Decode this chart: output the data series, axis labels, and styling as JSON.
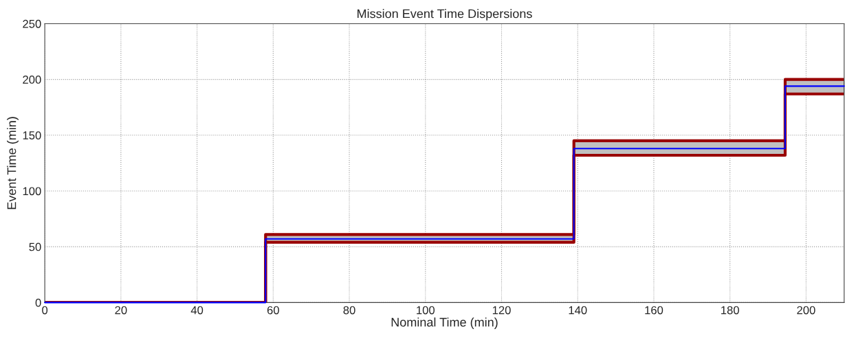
{
  "chart_data": {
    "type": "step",
    "title": "Mission Event Time Dispersions",
    "xlabel": "Nominal Time (min)",
    "ylabel": "Event Time (min)",
    "x": [
      0,
      58,
      139,
      194.5,
      210
    ],
    "series": [
      {
        "color": "#0000ff",
        "values": [
          0,
          57,
          138,
          194,
          194
        ],
        "lower": [
          0,
          54,
          132,
          187,
          187
        ],
        "upper": [
          0,
          61,
          145,
          200,
          200
        ]
      }
    ],
    "xlim": [
      0,
      210
    ],
    "ylim": [
      0,
      250
    ],
    "xticks": [
      0,
      20,
      40,
      60,
      80,
      100,
      120,
      140,
      160,
      180,
      200
    ],
    "yticks": [
      0,
      50,
      100,
      150,
      200,
      250
    ],
    "grid": true,
    "line_style": "solid"
  }
}
